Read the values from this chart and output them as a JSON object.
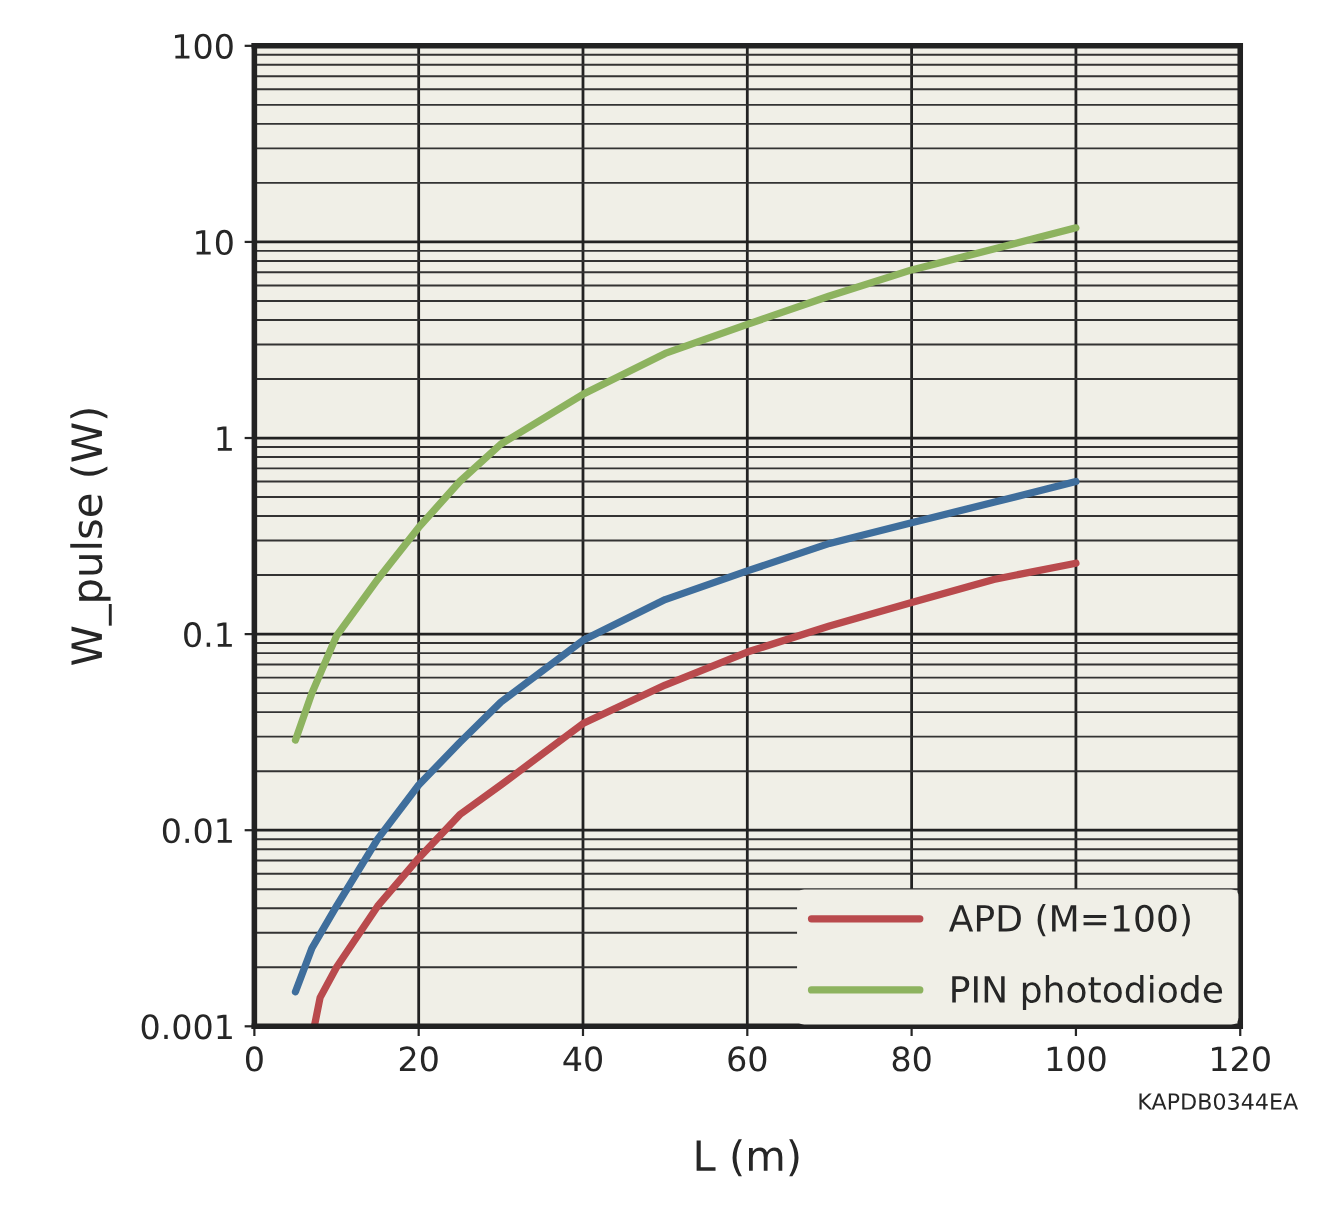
{
  "chart_data": {
    "type": "line",
    "xlabel": "L (m)",
    "ylabel": "W_pulse (W)",
    "log": "y",
    "xlim": [
      0,
      120
    ],
    "xticks": [
      0,
      20,
      40,
      60,
      80,
      100,
      120
    ],
    "ylim": [
      0.001,
      100
    ],
    "yticks": [
      0.001,
      0.01,
      0.1,
      1,
      10,
      100
    ],
    "grid": true,
    "legend": "bottom right",
    "marker": "none",
    "line_style": "solid",
    "annotations": [
      "KAPDB0344EA"
    ],
    "series": [
      {
        "color": "#3f6e9c",
        "x": [
          5,
          7,
          10,
          15,
          20,
          25,
          30,
          40,
          50,
          60,
          70,
          80,
          90,
          100
        ],
        "values": [
          0.0015,
          0.0025,
          0.0041,
          0.009,
          0.017,
          0.028,
          0.045,
          0.093,
          0.15,
          0.21,
          0.29,
          0.37,
          0.47,
          0.6
        ]
      },
      {
        "name": "APD (M=100)",
        "color": "#b94a4d",
        "x": [
          7.3,
          8,
          10,
          15,
          20,
          25,
          30,
          40,
          50,
          60,
          70,
          80,
          90,
          100
        ],
        "values": [
          0.001,
          0.0014,
          0.002,
          0.0041,
          0.0072,
          0.012,
          0.017,
          0.035,
          0.055,
          0.081,
          0.11,
          0.145,
          0.19,
          0.23
        ]
      },
      {
        "name": "PIN photodiode",
        "color": "#8db35f",
        "x": [
          5,
          7,
          10,
          15,
          20,
          25,
          30,
          40,
          50,
          60,
          70,
          80,
          90,
          100
        ],
        "values": [
          0.0288,
          0.05,
          0.098,
          0.19,
          0.35,
          0.6,
          0.93,
          1.67,
          2.7,
          3.8,
          5.3,
          7.2,
          9.2,
          11.8
        ]
      }
    ]
  }
}
